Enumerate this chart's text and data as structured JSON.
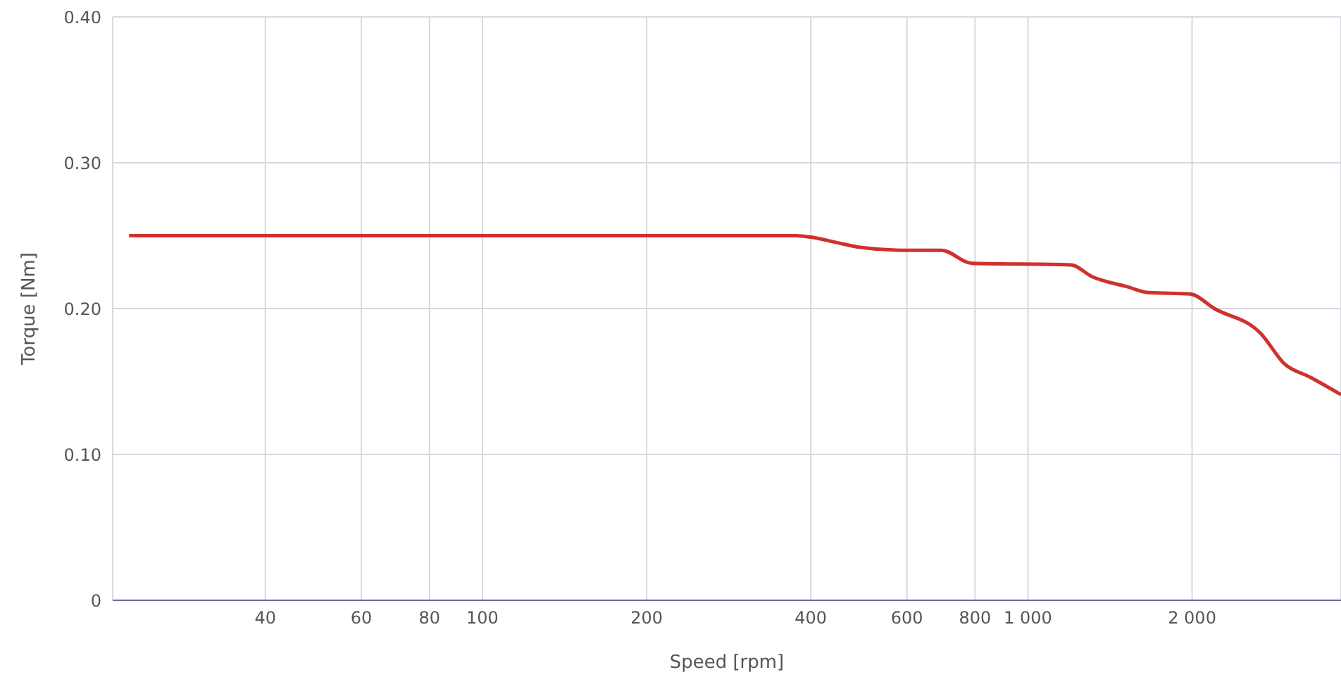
{
  "chart_data": {
    "type": "line",
    "xlabel": "Speed [rpm]",
    "ylabel": "Torque [Nm]",
    "log": "x",
    "grid": true,
    "marker": "none",
    "line_style": "solid",
    "xlim": [
      21,
      3750
    ],
    "xticks": [
      40,
      60,
      80,
      100,
      200,
      400,
      600,
      800,
      {
        "value": 1000,
        "label": "1 000"
      },
      {
        "value": 2000,
        "label": "2 000"
      }
    ],
    "ylim": [
      0,
      0.4
    ],
    "yticks": [
      {
        "value": 0,
        "label": "0"
      },
      {
        "value": 0.1,
        "label": "0.10"
      },
      {
        "value": 0.2,
        "label": "0.20"
      },
      {
        "value": 0.3,
        "label": "0.30"
      },
      {
        "value": 0.4,
        "label": "0.40"
      }
    ],
    "x": [
      22.5,
      376,
      400,
      450,
      492,
      588,
      694,
      790,
      1199,
      1310,
      1520,
      1662,
      1985,
      2198,
      2672,
      2956,
      3290,
      3750
    ],
    "series": [
      {
        "color": "#d0312d",
        "values": [
          0.25,
          0.25,
          0.249,
          0.245,
          0.242,
          0.24,
          0.24,
          0.231,
          0.23,
          0.222,
          0.215,
          0.211,
          0.21,
          0.2,
          0.183,
          0.162,
          0.153,
          0.141
        ]
      }
    ]
  }
}
